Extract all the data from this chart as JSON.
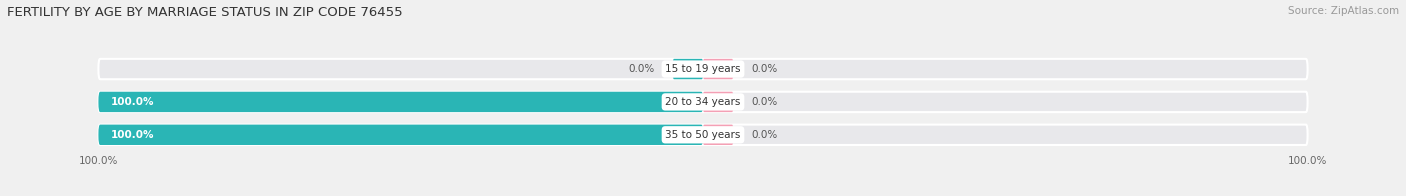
{
  "title": "FERTILITY BY AGE BY MARRIAGE STATUS IN ZIP CODE 76455",
  "source": "Source: ZipAtlas.com",
  "rows": [
    {
      "label": "15 to 19 years",
      "married": 0.0,
      "unmarried": 0.0
    },
    {
      "label": "20 to 34 years",
      "married": 100.0,
      "unmarried": 0.0
    },
    {
      "label": "35 to 50 years",
      "married": 100.0,
      "unmarried": 0.0
    }
  ],
  "married_color": "#2ab5b5",
  "unmarried_color": "#f4a0b5",
  "bar_bg_color": "#e8e8eb",
  "bar_height": 0.62,
  "title_fontsize": 9.5,
  "source_fontsize": 7.5,
  "label_fontsize": 7.5,
  "pct_fontsize": 7.5,
  "tick_fontsize": 7.5,
  "legend_fontsize": 8.5,
  "xlim": [
    -100,
    100
  ],
  "x_tick_labels_left": "100.0%",
  "x_tick_labels_right": "100.0%",
  "background_color": "#f0f0f0"
}
